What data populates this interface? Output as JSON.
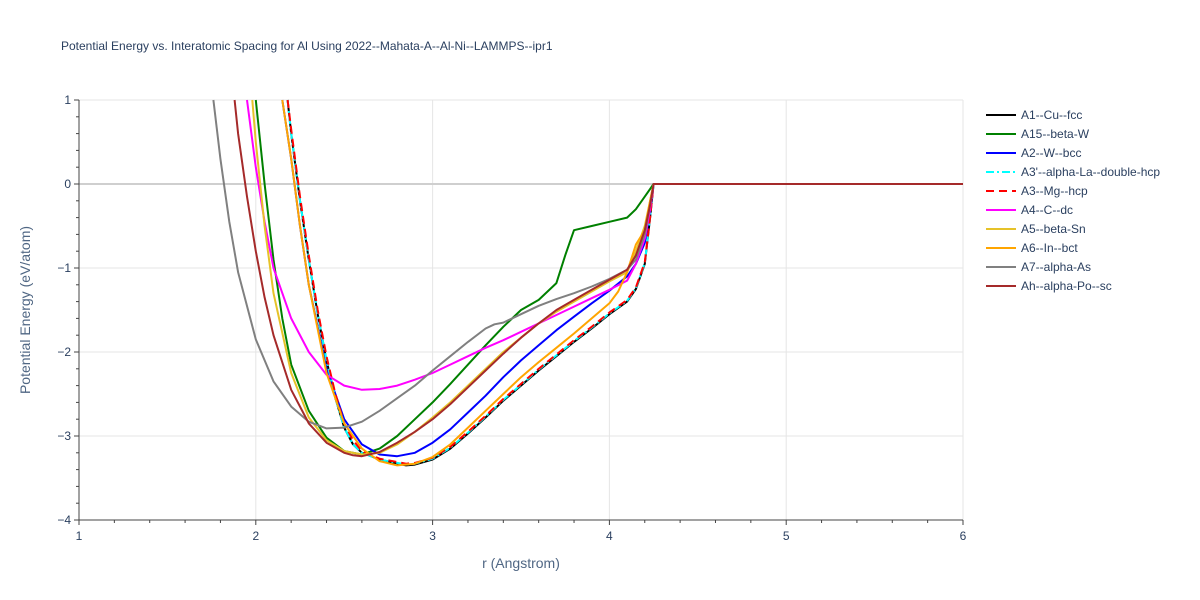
{
  "chart_data": {
    "type": "line",
    "title": "Potential Energy vs. Interatomic Spacing for Al Using 2022--Mahata-A--Al-Ni--LAMMPS--ipr1",
    "xlabel": "r (Angstrom)",
    "ylabel": "Potential Energy (eV/atom)",
    "xlim": [
      1,
      6
    ],
    "ylim": [
      -4,
      1
    ],
    "xticks": [
      1,
      2,
      3,
      4,
      5,
      6
    ],
    "yticks": [
      -4,
      -3,
      -2,
      -1,
      0,
      1
    ],
    "xtick_labels": [
      "1",
      "2",
      "3",
      "4",
      "5",
      "6"
    ],
    "ytick_labels": [
      "−4",
      "−3",
      "−2",
      "−1",
      "0",
      "1"
    ],
    "grid": true,
    "legend_position": "right",
    "series": [
      {
        "name": "A1--Cu--fcc",
        "color": "#000000",
        "dash": "solid",
        "points": [
          [
            2.18,
            1.0
          ],
          [
            2.2,
            0.6
          ],
          [
            2.25,
            -0.2
          ],
          [
            2.3,
            -0.9
          ],
          [
            2.35,
            -1.55
          ],
          [
            2.4,
            -2.1
          ],
          [
            2.45,
            -2.55
          ],
          [
            2.5,
            -2.9
          ],
          [
            2.55,
            -3.1
          ],
          [
            2.6,
            -3.2
          ],
          [
            2.7,
            -3.28
          ],
          [
            2.8,
            -3.33
          ],
          [
            2.85,
            -3.35
          ],
          [
            2.9,
            -3.34
          ],
          [
            3.0,
            -3.28
          ],
          [
            3.1,
            -3.15
          ],
          [
            3.2,
            -2.97
          ],
          [
            3.3,
            -2.78
          ],
          [
            3.4,
            -2.58
          ],
          [
            3.5,
            -2.4
          ],
          [
            3.6,
            -2.22
          ],
          [
            3.7,
            -2.05
          ],
          [
            3.8,
            -1.88
          ],
          [
            3.9,
            -1.72
          ],
          [
            4.0,
            -1.55
          ],
          [
            4.1,
            -1.4
          ],
          [
            4.15,
            -1.25
          ],
          [
            4.2,
            -0.95
          ],
          [
            4.23,
            -0.4
          ],
          [
            4.25,
            0.0
          ],
          [
            6.0,
            0.0
          ]
        ]
      },
      {
        "name": "A15--beta-W",
        "color": "#008000",
        "dash": "solid",
        "points": [
          [
            2.0,
            1.0
          ],
          [
            2.05,
            0.0
          ],
          [
            2.1,
            -0.9
          ],
          [
            2.15,
            -1.6
          ],
          [
            2.2,
            -2.15
          ],
          [
            2.3,
            -2.7
          ],
          [
            2.4,
            -3.02
          ],
          [
            2.5,
            -3.18
          ],
          [
            2.6,
            -3.22
          ],
          [
            2.7,
            -3.15
          ],
          [
            2.8,
            -3.0
          ],
          [
            2.9,
            -2.8
          ],
          [
            3.0,
            -2.6
          ],
          [
            3.1,
            -2.38
          ],
          [
            3.2,
            -2.15
          ],
          [
            3.3,
            -1.92
          ],
          [
            3.4,
            -1.7
          ],
          [
            3.5,
            -1.5
          ],
          [
            3.6,
            -1.38
          ],
          [
            3.7,
            -1.18
          ],
          [
            3.75,
            -0.85
          ],
          [
            3.8,
            -0.55
          ],
          [
            3.9,
            -0.5
          ],
          [
            4.0,
            -0.45
          ],
          [
            4.1,
            -0.4
          ],
          [
            4.15,
            -0.3
          ],
          [
            4.2,
            -0.15
          ],
          [
            4.25,
            0.0
          ],
          [
            6.0,
            0.0
          ]
        ]
      },
      {
        "name": "A2--W--bcc",
        "color": "#0000ff",
        "dash": "solid",
        "points": [
          [
            2.15,
            1.0
          ],
          [
            2.2,
            0.3
          ],
          [
            2.25,
            -0.5
          ],
          [
            2.3,
            -1.2
          ],
          [
            2.4,
            -2.2
          ],
          [
            2.5,
            -2.8
          ],
          [
            2.6,
            -3.1
          ],
          [
            2.7,
            -3.22
          ],
          [
            2.8,
            -3.24
          ],
          [
            2.9,
            -3.2
          ],
          [
            3.0,
            -3.08
          ],
          [
            3.1,
            -2.92
          ],
          [
            3.2,
            -2.72
          ],
          [
            3.3,
            -2.52
          ],
          [
            3.4,
            -2.3
          ],
          [
            3.5,
            -2.1
          ],
          [
            3.6,
            -1.92
          ],
          [
            3.7,
            -1.74
          ],
          [
            3.8,
            -1.58
          ],
          [
            3.9,
            -1.42
          ],
          [
            4.0,
            -1.27
          ],
          [
            4.1,
            -1.1
          ],
          [
            4.15,
            -0.95
          ],
          [
            4.2,
            -0.7
          ],
          [
            4.23,
            -0.3
          ],
          [
            4.25,
            0.0
          ],
          [
            6.0,
            0.0
          ]
        ]
      },
      {
        "name": "A3'--alpha-La--double-hcp",
        "color": "#00ffff",
        "dash": "dashdot",
        "points": [
          [
            2.18,
            1.0
          ],
          [
            2.2,
            0.6
          ],
          [
            2.25,
            -0.2
          ],
          [
            2.3,
            -0.9
          ],
          [
            2.35,
            -1.55
          ],
          [
            2.4,
            -2.1
          ],
          [
            2.45,
            -2.55
          ],
          [
            2.5,
            -2.9
          ],
          [
            2.55,
            -3.1
          ],
          [
            2.6,
            -3.2
          ],
          [
            2.7,
            -3.28
          ],
          [
            2.8,
            -3.32
          ],
          [
            2.85,
            -3.34
          ],
          [
            2.9,
            -3.33
          ],
          [
            3.0,
            -3.27
          ],
          [
            3.1,
            -3.14
          ],
          [
            3.2,
            -2.96
          ],
          [
            3.3,
            -2.77
          ],
          [
            3.4,
            -2.57
          ],
          [
            3.5,
            -2.39
          ],
          [
            3.6,
            -2.21
          ],
          [
            3.7,
            -2.04
          ],
          [
            3.8,
            -1.87
          ],
          [
            3.9,
            -1.71
          ],
          [
            4.0,
            -1.54
          ],
          [
            4.1,
            -1.39
          ],
          [
            4.15,
            -1.24
          ],
          [
            4.2,
            -0.94
          ],
          [
            4.23,
            -0.4
          ],
          [
            4.25,
            0.0
          ],
          [
            6.0,
            0.0
          ]
        ]
      },
      {
        "name": "A3--Mg--hcp",
        "color": "#ff0000",
        "dash": "dash",
        "points": [
          [
            2.18,
            1.0
          ],
          [
            2.2,
            0.65
          ],
          [
            2.25,
            -0.15
          ],
          [
            2.3,
            -0.85
          ],
          [
            2.35,
            -1.5
          ],
          [
            2.4,
            -2.05
          ],
          [
            2.45,
            -2.5
          ],
          [
            2.5,
            -2.85
          ],
          [
            2.55,
            -3.05
          ],
          [
            2.6,
            -3.18
          ],
          [
            2.7,
            -3.27
          ],
          [
            2.8,
            -3.31
          ],
          [
            2.85,
            -3.33
          ],
          [
            2.9,
            -3.32
          ],
          [
            3.0,
            -3.26
          ],
          [
            3.1,
            -3.13
          ],
          [
            3.2,
            -2.95
          ],
          [
            3.3,
            -2.76
          ],
          [
            3.4,
            -2.56
          ],
          [
            3.5,
            -2.38
          ],
          [
            3.6,
            -2.2
          ],
          [
            3.7,
            -2.03
          ],
          [
            3.8,
            -1.86
          ],
          [
            3.9,
            -1.7
          ],
          [
            4.0,
            -1.53
          ],
          [
            4.1,
            -1.38
          ],
          [
            4.15,
            -1.23
          ],
          [
            4.2,
            -0.93
          ],
          [
            4.23,
            -0.4
          ],
          [
            4.25,
            0.0
          ],
          [
            6.0,
            0.0
          ]
        ]
      },
      {
        "name": "A4--C--dc",
        "color": "#ff00ff",
        "dash": "solid",
        "points": [
          [
            1.95,
            1.0
          ],
          [
            2.0,
            0.2
          ],
          [
            2.05,
            -0.45
          ],
          [
            2.1,
            -1.0
          ],
          [
            2.2,
            -1.6
          ],
          [
            2.3,
            -2.0
          ],
          [
            2.4,
            -2.27
          ],
          [
            2.5,
            -2.4
          ],
          [
            2.6,
            -2.45
          ],
          [
            2.7,
            -2.44
          ],
          [
            2.8,
            -2.4
          ],
          [
            2.9,
            -2.33
          ],
          [
            3.0,
            -2.25
          ],
          [
            3.1,
            -2.15
          ],
          [
            3.2,
            -2.05
          ],
          [
            3.3,
            -1.95
          ],
          [
            3.4,
            -1.86
          ],
          [
            3.5,
            -1.76
          ],
          [
            3.6,
            -1.66
          ],
          [
            3.7,
            -1.56
          ],
          [
            3.8,
            -1.46
          ],
          [
            3.9,
            -1.36
          ],
          [
            4.0,
            -1.26
          ],
          [
            4.1,
            -1.15
          ],
          [
            4.15,
            -0.95
          ],
          [
            4.2,
            -0.65
          ],
          [
            4.23,
            -0.3
          ],
          [
            4.25,
            0.0
          ],
          [
            6.0,
            0.0
          ]
        ]
      },
      {
        "name": "A5--beta-Sn",
        "color": "#e6c229",
        "dash": "solid",
        "points": [
          [
            1.98,
            1.0
          ],
          [
            2.0,
            0.5
          ],
          [
            2.05,
            -0.5
          ],
          [
            2.1,
            -1.3
          ],
          [
            2.2,
            -2.25
          ],
          [
            2.3,
            -2.78
          ],
          [
            2.4,
            -3.05
          ],
          [
            2.5,
            -3.18
          ],
          [
            2.6,
            -3.22
          ],
          [
            2.7,
            -3.2
          ],
          [
            2.8,
            -3.1
          ],
          [
            2.9,
            -2.95
          ],
          [
            3.0,
            -2.78
          ],
          [
            3.1,
            -2.6
          ],
          [
            3.2,
            -2.4
          ],
          [
            3.3,
            -2.2
          ],
          [
            3.4,
            -2.0
          ],
          [
            3.5,
            -1.83
          ],
          [
            3.6,
            -1.66
          ],
          [
            3.7,
            -1.52
          ],
          [
            3.8,
            -1.4
          ],
          [
            3.9,
            -1.28
          ],
          [
            4.0,
            -1.16
          ],
          [
            4.1,
            -1.05
          ],
          [
            4.15,
            -0.8
          ],
          [
            4.2,
            -0.5
          ],
          [
            4.23,
            -0.2
          ],
          [
            4.25,
            0.0
          ],
          [
            6.0,
            0.0
          ]
        ]
      },
      {
        "name": "A6--In--bct",
        "color": "#ffa500",
        "dash": "solid",
        "points": [
          [
            2.15,
            1.0
          ],
          [
            2.2,
            0.3
          ],
          [
            2.25,
            -0.5
          ],
          [
            2.3,
            -1.2
          ],
          [
            2.4,
            -2.25
          ],
          [
            2.5,
            -2.85
          ],
          [
            2.6,
            -3.15
          ],
          [
            2.7,
            -3.3
          ],
          [
            2.8,
            -3.35
          ],
          [
            2.9,
            -3.33
          ],
          [
            3.0,
            -3.25
          ],
          [
            3.1,
            -3.1
          ],
          [
            3.2,
            -2.9
          ],
          [
            3.3,
            -2.7
          ],
          [
            3.4,
            -2.5
          ],
          [
            3.5,
            -2.3
          ],
          [
            3.6,
            -2.12
          ],
          [
            3.7,
            -1.95
          ],
          [
            3.8,
            -1.78
          ],
          [
            3.9,
            -1.6
          ],
          [
            4.0,
            -1.42
          ],
          [
            4.05,
            -1.28
          ],
          [
            4.1,
            -1.05
          ],
          [
            4.15,
            -0.72
          ],
          [
            4.2,
            -0.55
          ],
          [
            4.23,
            -0.2
          ],
          [
            4.25,
            0.0
          ],
          [
            6.0,
            0.0
          ]
        ]
      },
      {
        "name": "A7--alpha-As",
        "color": "#808080",
        "dash": "solid",
        "points": [
          [
            1.76,
            1.0
          ],
          [
            1.8,
            0.3
          ],
          [
            1.85,
            -0.45
          ],
          [
            1.9,
            -1.05
          ],
          [
            2.0,
            -1.85
          ],
          [
            2.1,
            -2.35
          ],
          [
            2.2,
            -2.65
          ],
          [
            2.3,
            -2.83
          ],
          [
            2.4,
            -2.91
          ],
          [
            2.5,
            -2.9
          ],
          [
            2.6,
            -2.83
          ],
          [
            2.7,
            -2.7
          ],
          [
            2.8,
            -2.55
          ],
          [
            2.9,
            -2.4
          ],
          [
            3.0,
            -2.22
          ],
          [
            3.1,
            -2.05
          ],
          [
            3.2,
            -1.88
          ],
          [
            3.3,
            -1.72
          ],
          [
            3.35,
            -1.67
          ],
          [
            3.4,
            -1.65
          ],
          [
            3.5,
            -1.55
          ],
          [
            3.6,
            -1.45
          ],
          [
            3.7,
            -1.37
          ],
          [
            3.8,
            -1.3
          ],
          [
            3.9,
            -1.22
          ],
          [
            4.0,
            -1.13
          ],
          [
            4.1,
            -1.02
          ],
          [
            4.15,
            -0.9
          ],
          [
            4.2,
            -0.6
          ],
          [
            4.23,
            -0.25
          ],
          [
            4.25,
            0.0
          ],
          [
            6.0,
            0.0
          ]
        ]
      },
      {
        "name": "Ah--alpha-Po--sc",
        "color": "#a52a2a",
        "dash": "solid",
        "points": [
          [
            1.88,
            1.0
          ],
          [
            1.9,
            0.6
          ],
          [
            1.95,
            -0.15
          ],
          [
            2.0,
            -0.8
          ],
          [
            2.05,
            -1.35
          ],
          [
            2.1,
            -1.8
          ],
          [
            2.2,
            -2.45
          ],
          [
            2.3,
            -2.85
          ],
          [
            2.4,
            -3.08
          ],
          [
            2.5,
            -3.2
          ],
          [
            2.55,
            -3.23
          ],
          [
            2.6,
            -3.24
          ],
          [
            2.7,
            -3.19
          ],
          [
            2.8,
            -3.08
          ],
          [
            2.9,
            -2.95
          ],
          [
            3.0,
            -2.8
          ],
          [
            3.1,
            -2.62
          ],
          [
            3.2,
            -2.42
          ],
          [
            3.3,
            -2.22
          ],
          [
            3.4,
            -2.02
          ],
          [
            3.5,
            -1.83
          ],
          [
            3.6,
            -1.66
          ],
          [
            3.7,
            -1.5
          ],
          [
            3.8,
            -1.38
          ],
          [
            3.9,
            -1.26
          ],
          [
            4.0,
            -1.14
          ],
          [
            4.1,
            -1.02
          ],
          [
            4.15,
            -0.85
          ],
          [
            4.2,
            -0.55
          ],
          [
            4.23,
            -0.25
          ],
          [
            4.25,
            0.0
          ],
          [
            6.0,
            0.0
          ]
        ]
      }
    ]
  }
}
